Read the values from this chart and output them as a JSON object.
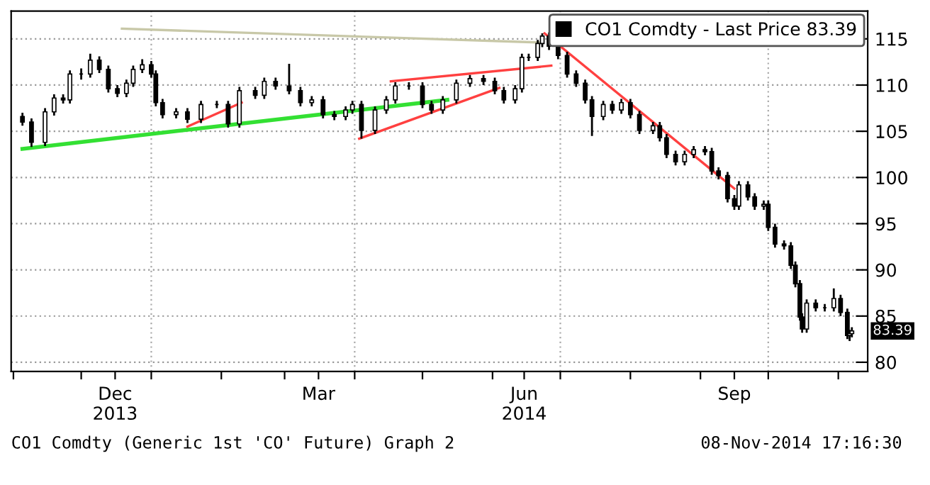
{
  "chart_data": {
    "type": "candlestick",
    "x": [
      "2013-11-05",
      "2013-11-09",
      "2013-11-15",
      "2013-11-19",
      "2013-11-23",
      "2013-11-26",
      "2013-12-01",
      "2013-12-05",
      "2013-12-09",
      "2013-12-13",
      "2013-12-17",
      "2013-12-21",
      "2013-12-24",
      "2013-12-28",
      "2014-01-01",
      "2014-01-03",
      "2014-01-06",
      "2014-01-12",
      "2014-01-17",
      "2014-01-23",
      "2014-01-30",
      "2014-02-04",
      "2014-02-09",
      "2014-02-16",
      "2014-02-20",
      "2014-02-25",
      "2014-03-03",
      "2014-03-08",
      "2014-03-13",
      "2014-03-18",
      "2014-03-23",
      "2014-03-28",
      "2014-03-31",
      "2014-04-04",
      "2014-04-10",
      "2014-04-15",
      "2014-04-19",
      "2014-04-25",
      "2014-05-01",
      "2014-05-05",
      "2014-05-10",
      "2014-05-16",
      "2014-05-22",
      "2014-05-28",
      "2014-06-02",
      "2014-06-06",
      "2014-06-11",
      "2014-06-14",
      "2014-06-17",
      "2014-06-21",
      "2014-06-23",
      "2014-06-26",
      "2014-06-30",
      "2014-07-04",
      "2014-07-08",
      "2014-07-12",
      "2014-07-15",
      "2014-07-20",
      "2014-07-24",
      "2014-07-28",
      "2014-08-01",
      "2014-08-05",
      "2014-08-11",
      "2014-08-14",
      "2014-08-17",
      "2014-08-21",
      "2014-08-25",
      "2014-08-29",
      "2014-09-03",
      "2014-09-06",
      "2014-09-09",
      "2014-09-13",
      "2014-09-16",
      "2014-09-18",
      "2014-09-22",
      "2014-09-25",
      "2014-09-29",
      "2014-10-01",
      "2014-10-04",
      "2014-10-08",
      "2014-10-11",
      "2014-10-13",
      "2014-10-15",
      "2014-10-16",
      "2014-10-18",
      "2014-10-22",
      "2014-10-26",
      "2014-10-30",
      "2014-11-02",
      "2014-11-05",
      "2014-11-06",
      "2014-11-07"
    ],
    "series": [
      {
        "name": "CO1 Comdty - Last Price 83.39",
        "color": "#000000",
        "ohlc": [
          [
            106.6,
            107.0,
            105.6,
            106.0
          ],
          [
            106.0,
            106.4,
            103.3,
            103.8
          ],
          [
            103.8,
            107.5,
            103.4,
            107.1
          ],
          [
            107.1,
            109.0,
            106.7,
            108.6
          ],
          [
            108.6,
            109.0,
            108.0,
            108.4
          ],
          [
            108.4,
            111.6,
            108.0,
            111.2
          ],
          [
            111.2,
            111.8,
            110.6,
            111.2
          ],
          [
            111.2,
            113.4,
            110.8,
            112.7
          ],
          [
            112.7,
            113.1,
            111.3,
            111.7
          ],
          [
            111.7,
            112.1,
            109.2,
            109.6
          ],
          [
            109.6,
            110.0,
            108.7,
            109.1
          ],
          [
            109.1,
            110.6,
            108.7,
            110.2
          ],
          [
            110.2,
            112.1,
            109.8,
            111.7
          ],
          [
            111.7,
            112.8,
            111.3,
            112.2
          ],
          [
            112.2,
            112.6,
            110.8,
            111.2
          ],
          [
            111.2,
            111.6,
            107.7,
            108.1
          ],
          [
            108.1,
            108.5,
            106.4,
            106.8
          ],
          [
            106.8,
            107.5,
            106.4,
            107.1
          ],
          [
            107.1,
            107.5,
            105.9,
            106.3
          ],
          [
            106.3,
            108.3,
            105.9,
            107.9
          ],
          [
            107.9,
            108.3,
            107.5,
            107.9
          ],
          [
            107.9,
            108.3,
            105.4,
            105.8
          ],
          [
            105.8,
            109.8,
            105.4,
            109.4
          ],
          [
            109.4,
            109.8,
            108.5,
            108.9
          ],
          [
            108.9,
            110.8,
            108.5,
            110.4
          ],
          [
            110.4,
            110.8,
            109.5,
            109.9
          ],
          [
            109.9,
            112.3,
            109.0,
            109.4
          ],
          [
            109.4,
            109.8,
            107.7,
            108.1
          ],
          [
            108.1,
            108.8,
            107.7,
            108.4
          ],
          [
            108.4,
            108.8,
            106.4,
            106.8
          ],
          [
            106.8,
            107.2,
            106.2,
            106.6
          ],
          [
            106.6,
            107.7,
            106.2,
            107.3
          ],
          [
            107.3,
            108.3,
            106.9,
            107.9
          ],
          [
            107.9,
            108.3,
            104.2,
            105.1
          ],
          [
            105.1,
            107.7,
            104.7,
            107.3
          ],
          [
            107.3,
            108.8,
            106.9,
            108.4
          ],
          [
            108.4,
            110.3,
            108.0,
            109.9
          ],
          [
            109.9,
            110.3,
            109.5,
            109.9
          ],
          [
            109.9,
            110.3,
            107.5,
            107.9
          ],
          [
            107.9,
            108.3,
            106.9,
            107.3
          ],
          [
            107.3,
            108.8,
            106.9,
            108.4
          ],
          [
            108.4,
            110.6,
            108.0,
            110.2
          ],
          [
            110.2,
            111.1,
            109.8,
            110.7
          ],
          [
            110.7,
            111.1,
            110.0,
            110.4
          ],
          [
            110.4,
            110.8,
            109.0,
            109.4
          ],
          [
            109.4,
            109.8,
            108.0,
            108.4
          ],
          [
            108.4,
            110.0,
            108.0,
            109.6
          ],
          [
            109.6,
            113.4,
            109.2,
            113.0
          ],
          [
            113.0,
            113.4,
            112.6,
            113.0
          ],
          [
            113.0,
            114.9,
            112.6,
            114.5
          ],
          [
            114.5,
            115.6,
            114.1,
            115.3
          ],
          [
            115.3,
            115.7,
            113.8,
            114.2
          ],
          [
            114.2,
            114.6,
            112.8,
            113.2
          ],
          [
            113.2,
            113.6,
            110.8,
            111.2
          ],
          [
            111.2,
            111.6,
            109.8,
            110.2
          ],
          [
            110.2,
            110.6,
            108.0,
            108.4
          ],
          [
            108.4,
            108.8,
            104.5,
            106.6
          ],
          [
            106.6,
            108.3,
            106.2,
            107.9
          ],
          [
            107.9,
            108.3,
            106.9,
            107.3
          ],
          [
            107.3,
            108.5,
            106.9,
            108.1
          ],
          [
            108.1,
            108.5,
            106.4,
            106.8
          ],
          [
            106.8,
            107.2,
            104.7,
            105.1
          ],
          [
            105.1,
            106.0,
            104.7,
            105.6
          ],
          [
            105.6,
            106.0,
            103.9,
            104.3
          ],
          [
            104.3,
            104.7,
            102.1,
            102.5
          ],
          [
            102.5,
            102.9,
            101.3,
            101.7
          ],
          [
            101.7,
            102.9,
            101.3,
            102.5
          ],
          [
            102.5,
            103.4,
            102.1,
            103.0
          ],
          [
            103.0,
            103.4,
            102.4,
            102.8
          ],
          [
            102.8,
            103.2,
            100.3,
            100.7
          ],
          [
            100.7,
            101.1,
            99.8,
            100.2
          ],
          [
            100.2,
            100.6,
            97.3,
            97.7
          ],
          [
            97.7,
            98.1,
            96.5,
            96.9
          ],
          [
            96.9,
            99.6,
            96.5,
            99.2
          ],
          [
            99.2,
            99.6,
            97.5,
            97.9
          ],
          [
            97.9,
            98.3,
            96.5,
            96.9
          ],
          [
            96.9,
            97.5,
            96.5,
            97.1
          ],
          [
            97.1,
            97.5,
            94.2,
            94.6
          ],
          [
            94.6,
            95.0,
            92.4,
            92.8
          ],
          [
            92.8,
            93.2,
            92.2,
            92.6
          ],
          [
            92.6,
            93.0,
            90.1,
            90.5
          ],
          [
            90.5,
            90.9,
            88.1,
            88.5
          ],
          [
            88.5,
            88.9,
            84.5,
            84.9
          ],
          [
            84.9,
            85.3,
            83.2,
            83.6
          ],
          [
            83.6,
            86.8,
            83.2,
            86.4
          ],
          [
            86.4,
            86.8,
            85.5,
            85.9
          ],
          [
            85.9,
            86.3,
            85.5,
            85.9
          ],
          [
            85.9,
            88.0,
            85.5,
            86.9
          ],
          [
            86.9,
            87.3,
            85.0,
            85.4
          ],
          [
            85.4,
            85.8,
            82.5,
            82.9
          ],
          [
            82.9,
            83.5,
            82.3,
            83.1
          ],
          [
            83.1,
            83.8,
            82.7,
            83.39
          ]
        ]
      },
      {
        "type": "line",
        "color": "#33e033",
        "x": [
          "2013-11-05",
          "2014-05-12"
        ],
        "values": [
          103.1,
          108.4
        ]
      },
      {
        "type": "line",
        "color": "#c8c8a8",
        "x": [
          "2013-12-19",
          "2014-06-23"
        ],
        "values": [
          116.1,
          114.6
        ]
      },
      {
        "type": "line",
        "color": "#ff4040",
        "x": [
          "2014-01-17",
          "2014-02-10"
        ],
        "values": [
          105.5,
          108.1
        ]
      },
      {
        "type": "line",
        "color": "#ff4040",
        "x": [
          "2014-04-03",
          "2014-06-04"
        ],
        "values": [
          104.2,
          109.7
        ]
      },
      {
        "type": "line",
        "color": "#ff4040",
        "x": [
          "2014-04-17",
          "2014-06-27"
        ],
        "values": [
          110.4,
          112.1
        ]
      },
      {
        "type": "line",
        "color": "#ff4040",
        "x": [
          "2014-06-24",
          "2014-09-16"
        ],
        "values": [
          115.6,
          98.8
        ]
      }
    ],
    "xlim": [
      "2013-10-31",
      "2014-11-14"
    ],
    "xticks": [
      {
        "value": "2013-11-01",
        "label": null
      },
      {
        "value": "2013-12-01",
        "label": null
      },
      {
        "value": "2013-12-16",
        "label": "Dec\n2013"
      },
      {
        "value": "2014-01-01",
        "label": null
      },
      {
        "value": "2014-02-01",
        "label": null
      },
      {
        "value": "2014-03-01",
        "label": null
      },
      {
        "value": "2014-03-16",
        "label": "Mar"
      },
      {
        "value": "2014-04-01",
        "label": null
      },
      {
        "value": "2014-05-01",
        "label": null
      },
      {
        "value": "2014-06-01",
        "label": null
      },
      {
        "value": "2014-06-15",
        "label": "Jun\n2014"
      },
      {
        "value": "2014-07-01",
        "label": null
      },
      {
        "value": "2014-08-01",
        "label": null
      },
      {
        "value": "2014-09-01",
        "label": null
      },
      {
        "value": "2014-09-16",
        "label": "Sep"
      },
      {
        "value": "2014-10-01",
        "label": null
      },
      {
        "value": "2014-11-01",
        "label": null
      }
    ],
    "ylim": [
      79,
      118
    ],
    "yticks": [
      80,
      85,
      90,
      95,
      100,
      105,
      110,
      115
    ],
    "grid": "y",
    "ref_lines": [
      {
        "axis": "x",
        "value": "2014-01-01",
        "color": "#aaaaaa",
        "line_style": "dotted"
      },
      {
        "axis": "x",
        "value": "2014-04-01",
        "color": "#aaaaaa",
        "line_style": "dotted"
      },
      {
        "axis": "x",
        "value": "2014-07-01",
        "color": "#aaaaaa",
        "line_style": "dotted"
      },
      {
        "axis": "x",
        "value": "2014-10-01",
        "color": "#aaaaaa",
        "line_style": "dotted"
      }
    ],
    "legend": "top right",
    "annotations": [
      {
        "text": "83.39",
        "x": "2014-11-07",
        "y": 83.39
      },
      "CO1 Comdty (Generic 1st 'CO' Future) Graph 2",
      "08-Nov-2014 17:16:30"
    ]
  }
}
